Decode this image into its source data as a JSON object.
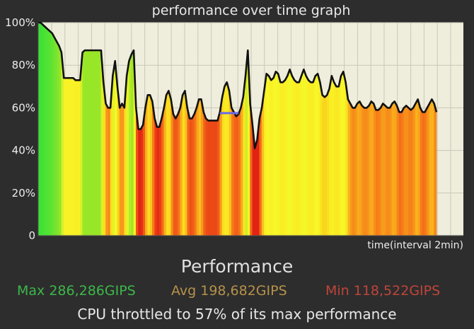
{
  "chart_data": {
    "type": "area",
    "title": "performance over time graph",
    "xlabel": "time(interval 2min)",
    "ylabel": "",
    "ylim": [
      0,
      100
    ],
    "yticks": [
      "0",
      "20%",
      "40%",
      "60%",
      "80%",
      "100%"
    ],
    "ytick_values": [
      0,
      20,
      40,
      60,
      80,
      100
    ],
    "grid": true,
    "series": [
      {
        "values": [
          100,
          100,
          99,
          98,
          97,
          96,
          95,
          93,
          91,
          89,
          86,
          74,
          74,
          74,
          74,
          74,
          73,
          73,
          73,
          86,
          87,
          87,
          87,
          87,
          87,
          87,
          87,
          87,
          72,
          62,
          60,
          60,
          75,
          82,
          70,
          60,
          62,
          60,
          75,
          82,
          85,
          87,
          60,
          50,
          50,
          52,
          60,
          66,
          66,
          63,
          55,
          51,
          51,
          55,
          60,
          66,
          68,
          64,
          57,
          55,
          57,
          60,
          66,
          68,
          60,
          55,
          55,
          57,
          60,
          64,
          64,
          58,
          55,
          54,
          54,
          54,
          54,
          54,
          58,
          65,
          70,
          72,
          68,
          60,
          58,
          56,
          57,
          60,
          65,
          75,
          87,
          62,
          52,
          41,
          45,
          55,
          60,
          68,
          76,
          75,
          73,
          74,
          77,
          76,
          72,
          72,
          73,
          75,
          78,
          75,
          73,
          72,
          72,
          75,
          78,
          75,
          73,
          72,
          72,
          75,
          76,
          72,
          66,
          65,
          66,
          69,
          75,
          72,
          70,
          70,
          75,
          77,
          72,
          64,
          62,
          60,
          60,
          62,
          63,
          61,
          60,
          60,
          61,
          63,
          62,
          59,
          59,
          60,
          62,
          61,
          60,
          60,
          62,
          63,
          61,
          58,
          58,
          60,
          61,
          60,
          59,
          60,
          62,
          64,
          60,
          58,
          58,
          60,
          62,
          64,
          62,
          58
        ]
      }
    ],
    "annotations": [
      {
        "type": "hline",
        "x_start": 78,
        "x_end": 86,
        "y": 57.5,
        "color": "#6a6ae8"
      }
    ]
  },
  "stats": {
    "heading": "Performance",
    "max": "Max 286,286GIPS",
    "avg": "Avg 198,682GIPS",
    "min": "Min 118,522GIPS",
    "throttle": "CPU throttled to 57% of its max performance"
  },
  "colors": {
    "background": "#2d2d2d",
    "plot_bg": "#efeedd",
    "line": "#111111",
    "max": "#3cb84a",
    "avg": "#b6924a",
    "min": "#c0443a"
  }
}
